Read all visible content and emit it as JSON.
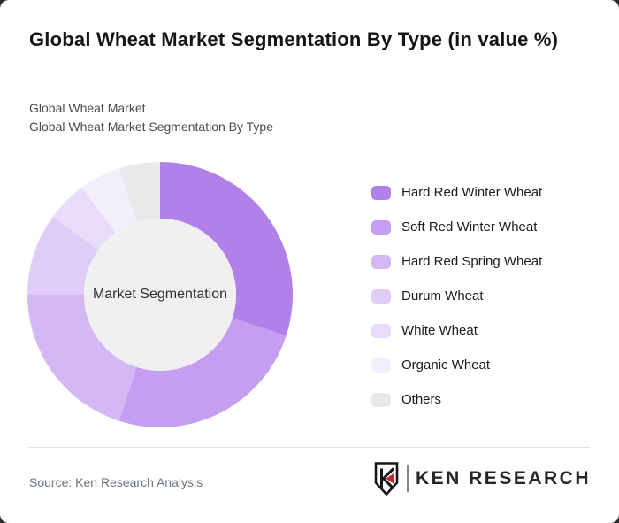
{
  "header": {
    "title": "Global Wheat Market Segmentation By Type (in value %)",
    "subtitle1": "Global Wheat Market",
    "subtitle2": "Global Wheat Market Segmentation By Type"
  },
  "chart_data": {
    "type": "pie",
    "variant": "donut",
    "title": "Global Wheat Market Segmentation By Type (in value %)",
    "center_label": "Market Segmentation",
    "categories": [
      "Hard Red Winter Wheat",
      "Soft Red Winter Wheat",
      "Hard Red Spring Wheat",
      "Durum Wheat",
      "White Wheat",
      "Organic Wheat",
      "Others"
    ],
    "values": [
      30,
      25,
      20,
      10,
      5,
      5,
      5
    ],
    "unit": "percent of value",
    "colors": [
      "#b180e9",
      "#c49ef0",
      "#d4b8f4",
      "#dfcdf8",
      "#e8dcfa",
      "#f3eefc",
      "#e9e9e9"
    ],
    "hole_color": "#f0f0f0",
    "start_angle_deg": 0,
    "direction": "clockwise",
    "legend_position": "right",
    "data_labels_shown": false
  },
  "footer": {
    "source": "Source: Ken Research Analysis",
    "logo": {
      "text": "KEN RESEARCH",
      "emblem_letter": "K",
      "accent_color": "#cb2430"
    }
  }
}
